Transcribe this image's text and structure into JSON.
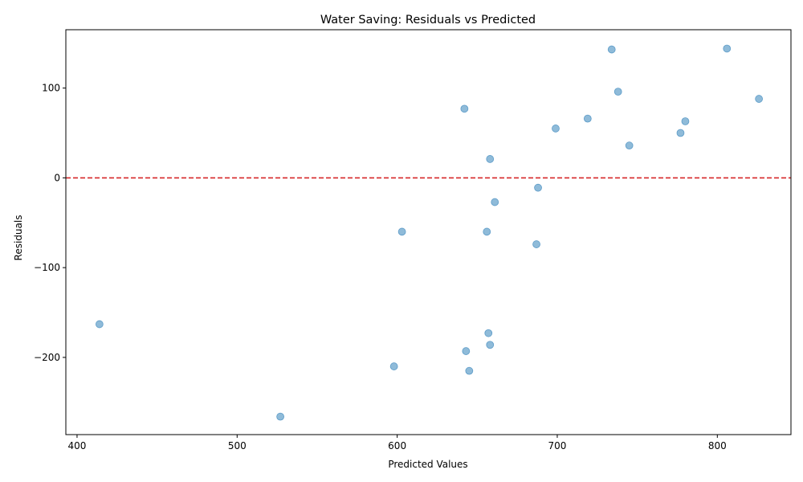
{
  "chart_data": {
    "type": "scatter",
    "title": "Water Saving: Residuals vs Predicted",
    "xlabel": "Predicted Values",
    "ylabel": "Residuals",
    "xlim": [
      393,
      846
    ],
    "ylim": [
      -286,
      165
    ],
    "xticks": [
      400,
      500,
      600,
      700,
      800
    ],
    "yticks": [
      -200,
      -100,
      0,
      100
    ],
    "grid": false,
    "legend": "none",
    "point_color": "#1f77b4",
    "point_alpha": 0.5,
    "reference_line": {
      "y": 0,
      "color": "#d62728",
      "style": "dashed"
    },
    "points": [
      {
        "x": 414,
        "y": -163
      },
      {
        "x": 527,
        "y": -266
      },
      {
        "x": 598,
        "y": -210
      },
      {
        "x": 603,
        "y": -60
      },
      {
        "x": 642,
        "y": 77
      },
      {
        "x": 643,
        "y": -193
      },
      {
        "x": 645,
        "y": -215
      },
      {
        "x": 656,
        "y": -60
      },
      {
        "x": 657,
        "y": -173
      },
      {
        "x": 658,
        "y": 21
      },
      {
        "x": 658,
        "y": -186
      },
      {
        "x": 661,
        "y": -27
      },
      {
        "x": 687,
        "y": -74
      },
      {
        "x": 688,
        "y": -11
      },
      {
        "x": 699,
        "y": 55
      },
      {
        "x": 719,
        "y": 66
      },
      {
        "x": 734,
        "y": 143
      },
      {
        "x": 738,
        "y": 96
      },
      {
        "x": 745,
        "y": 36
      },
      {
        "x": 777,
        "y": 50
      },
      {
        "x": 780,
        "y": 63
      },
      {
        "x": 806,
        "y": 144
      },
      {
        "x": 826,
        "y": 88
      }
    ]
  }
}
